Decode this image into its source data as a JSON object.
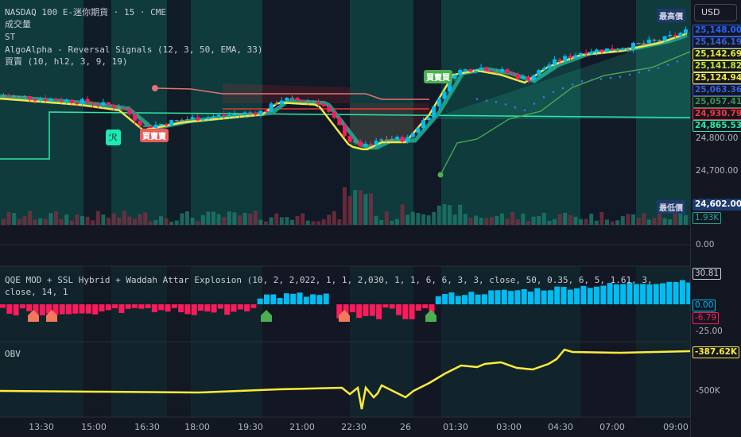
{
  "legend": {
    "symbol": "NASDAQ 100 E-迷你期貨 · 15 · CME",
    "volume": "成交量",
    "st": "ST",
    "algo": "AlgoAlpha - Reversal Signals (12, 3, 50, EMA, 33)",
    "buysell": "買賣 (10, hl2, 3, 9, 19)",
    "qqe": "QQE MOD + SSL Hybrid + Waddah Attar Explosion (10, 2, 2,022, 1, 1, 2,030, 1, 1, 6, 6, 3, 3, close, 50, 0.35, 6, 5, 1.61, 3, close, 14, 1",
    "obv": "OBV"
  },
  "currency": "USD",
  "high_tag": "最高價",
  "low_tag": "最低價",
  "price_labels": [
    {
      "text": "25,148.00",
      "color": "#2962ff"
    },
    {
      "text": "25,146.19",
      "color": "#3d5fd6"
    },
    {
      "text": "25,142.69",
      "color": "#e8e83a"
    },
    {
      "text": "25,141.82",
      "color": "#c6e03a"
    },
    {
      "text": "25,124.94",
      "color": "#f5e642"
    },
    {
      "text": "25,063.36",
      "color": "#3d5fd6"
    },
    {
      "text": "25,057.41",
      "color": "#3f8f4f"
    },
    {
      "text": "24,930.79",
      "color": "#f23645"
    },
    {
      "text": "24,865.53",
      "color": "#2ee8a6"
    }
  ],
  "price_ticks": [
    "24,800.00",
    "24,700.00"
  ],
  "low_price": "24,602.00",
  "volume_value": "1.93K",
  "pane2_tick": "0.00",
  "qqe_labels": {
    "top": "30.81",
    "zero": "0.00",
    "neg": "-6.79",
    "tick": "-25.00"
  },
  "obv_labels": {
    "value": "-387.62K",
    "tick": "-500K"
  },
  "signals": {
    "reversal": "ℛ",
    "sell": "買賣賣",
    "buy": "買賣買"
  },
  "time_ticks": [
    "13:30",
    "15:00",
    "16:30",
    "18:00",
    "19:30",
    "21:00",
    "22:30",
    "26",
    "01:30",
    "03:00",
    "04:30",
    "07:00",
    "09:00"
  ],
  "colors": {
    "up": "#00bcf2",
    "down": "#ff1a5c",
    "neutral": "#808890",
    "ma": "#f5e642",
    "band": "#1f9c84",
    "obv": "#ffeb3b"
  }
}
